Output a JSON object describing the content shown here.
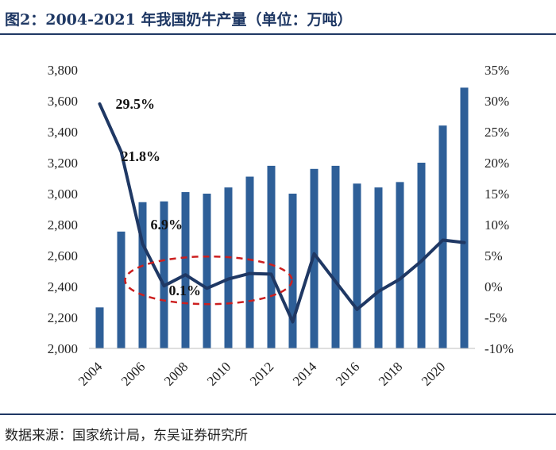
{
  "title": "图2：2004-2021 年我国奶牛产量（单位：万吨）",
  "source": "数据来源：国家统计局，东吴证券研究所",
  "colors": {
    "bar": "#2e5f98",
    "line": "#1f3864",
    "ellipse": "#cc1f1f",
    "title": "#1f3864"
  },
  "chart_data": {
    "type": "bar",
    "title": "图2：2004-2021 年我国奶牛产量（单位：万吨）",
    "x": [
      2004,
      2005,
      2006,
      2007,
      2008,
      2009,
      2010,
      2011,
      2012,
      2013,
      2014,
      2015,
      2016,
      2017,
      2018,
      2019,
      2020,
      2021
    ],
    "x_tick_labels": [
      "2004",
      "2006",
      "2008",
      "2010",
      "2012",
      "2014",
      "2016",
      "2018",
      "2020"
    ],
    "series": [
      {
        "type": "bar",
        "axis": "left",
        "values": [
          2265,
          2755,
          2945,
          2950,
          3010,
          3000,
          3040,
          3110,
          3180,
          3000,
          3160,
          3180,
          3065,
          3040,
          3075,
          3200,
          3440,
          3685
        ]
      },
      {
        "type": "line",
        "axis": "right",
        "values": [
          29.5,
          21.8,
          6.9,
          0.1,
          1.9,
          -0.3,
          1.2,
          2.1,
          2.0,
          -5.7,
          5.3,
          0.8,
          -3.7,
          -0.8,
          1.2,
          4.1,
          7.5,
          7.1
        ]
      }
    ],
    "y_left": {
      "ylim": [
        2000,
        3800
      ],
      "ticks": [
        "2,000",
        "2,200",
        "2,400",
        "2,600",
        "2,800",
        "3,000",
        "3,200",
        "3,400",
        "3,600",
        "3,800"
      ]
    },
    "y_right": {
      "ylim": [
        -10,
        35
      ],
      "ticks": [
        "-10%",
        "-5%",
        "0%",
        "5%",
        "10%",
        "15%",
        "20%",
        "25%",
        "30%",
        "35%"
      ]
    },
    "annotations": [
      {
        "text": "29.5%",
        "year": 2004
      },
      {
        "text": "21.8%",
        "year": 2005
      },
      {
        "text": "6.9%",
        "year": 2006
      },
      {
        "text": "0.1%",
        "year": 2007
      }
    ],
    "highlight": "dashed ellipse around 2006–2012",
    "grid": false
  }
}
